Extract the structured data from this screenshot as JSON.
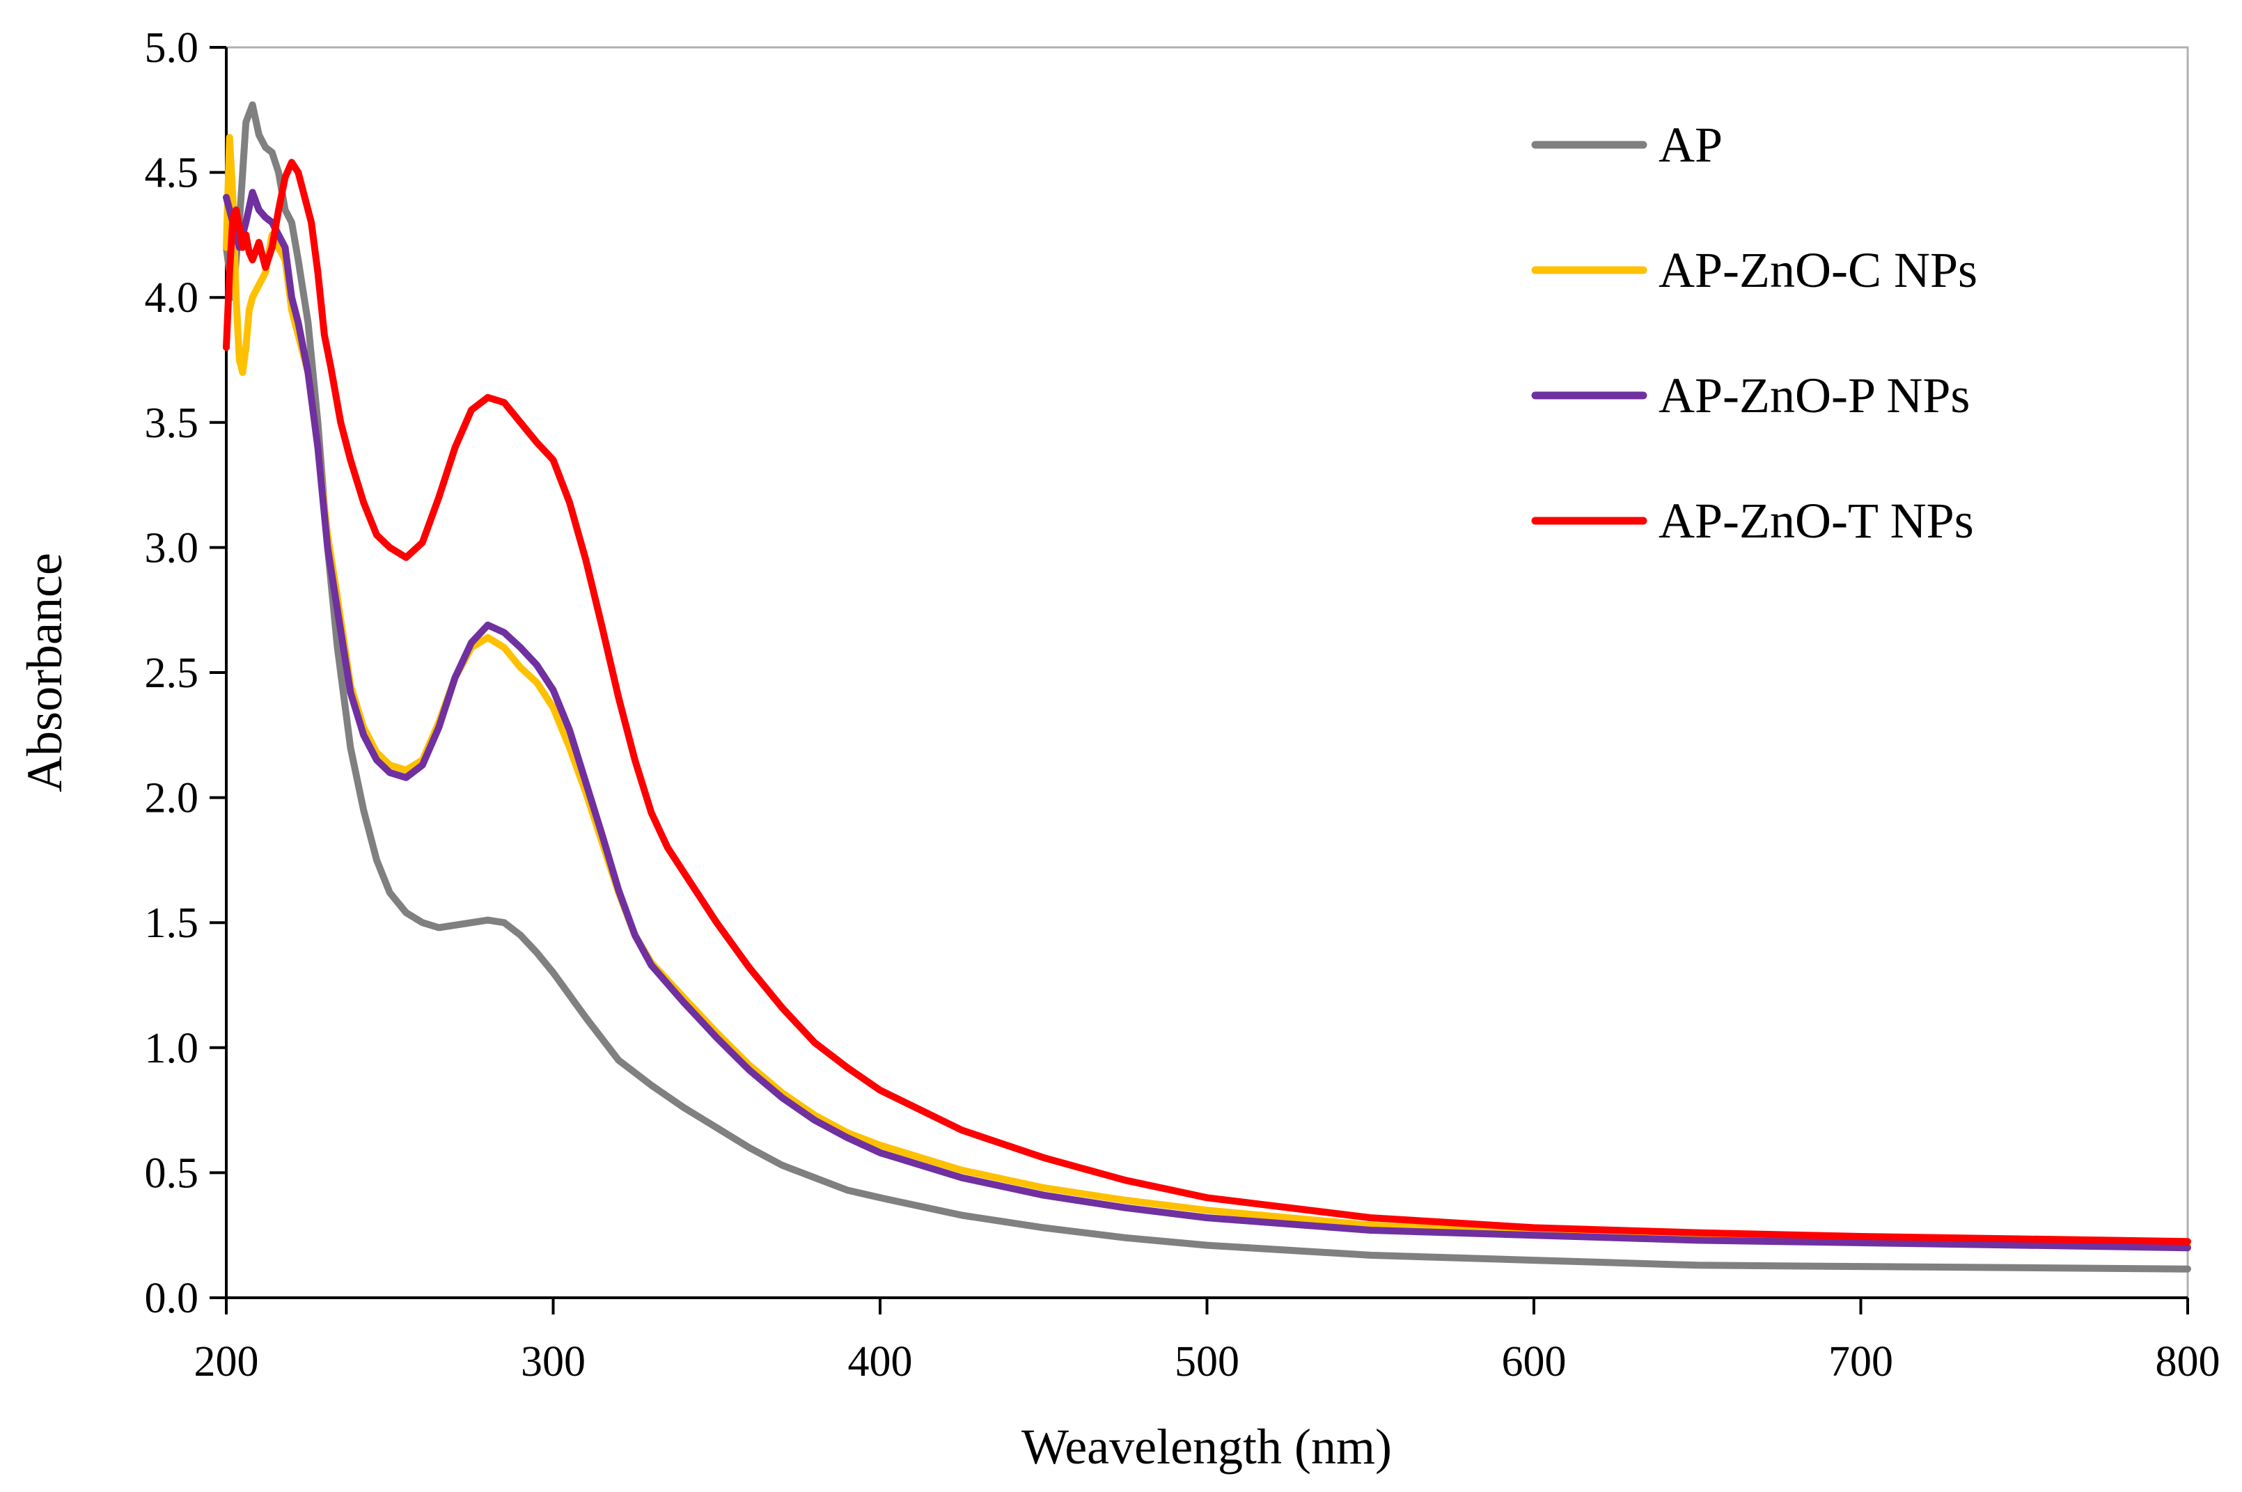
{
  "chart_data": {
    "type": "line",
    "title": "",
    "xlabel": "Weavelength (nm)",
    "ylabel": "Absorbance",
    "xlim": [
      200,
      800
    ],
    "ylim": [
      0,
      5
    ],
    "xticks": [
      200,
      300,
      400,
      500,
      600,
      700,
      800
    ],
    "yticks": [
      0.0,
      0.5,
      1.0,
      1.5,
      2.0,
      2.5,
      3.0,
      3.5,
      4.0,
      4.5,
      5.0
    ],
    "xtick_labels": [
      "200",
      "300",
      "400",
      "500",
      "600",
      "700",
      "800"
    ],
    "ytick_labels": [
      "0.0",
      "0.5",
      "1.0",
      "1.5",
      "2.0",
      "2.5",
      "3.0",
      "3.5",
      "4.0",
      "4.5",
      "5.0"
    ],
    "grid": false,
    "legend_position": "top-right",
    "series": [
      {
        "name": "AP",
        "color": "#808080",
        "points": [
          [
            200,
            4.2
          ],
          [
            202,
            4.0
          ],
          [
            204,
            4.3
          ],
          [
            206,
            4.7
          ],
          [
            208,
            4.77
          ],
          [
            210,
            4.65
          ],
          [
            212,
            4.6
          ],
          [
            214,
            4.58
          ],
          [
            216,
            4.5
          ],
          [
            218,
            4.35
          ],
          [
            220,
            4.3
          ],
          [
            222,
            4.15
          ],
          [
            225,
            3.9
          ],
          [
            228,
            3.5
          ],
          [
            231,
            3.0
          ],
          [
            234,
            2.6
          ],
          [
            238,
            2.2
          ],
          [
            242,
            1.95
          ],
          [
            246,
            1.75
          ],
          [
            250,
            1.62
          ],
          [
            255,
            1.54
          ],
          [
            260,
            1.5
          ],
          [
            265,
            1.48
          ],
          [
            270,
            1.49
          ],
          [
            275,
            1.5
          ],
          [
            280,
            1.51
          ],
          [
            285,
            1.5
          ],
          [
            290,
            1.45
          ],
          [
            295,
            1.38
          ],
          [
            300,
            1.3
          ],
          [
            310,
            1.12
          ],
          [
            320,
            0.95
          ],
          [
            330,
            0.85
          ],
          [
            340,
            0.76
          ],
          [
            350,
            0.68
          ],
          [
            360,
            0.6
          ],
          [
            370,
            0.53
          ],
          [
            380,
            0.48
          ],
          [
            390,
            0.43
          ],
          [
            400,
            0.4
          ],
          [
            425,
            0.33
          ],
          [
            450,
            0.28
          ],
          [
            475,
            0.24
          ],
          [
            500,
            0.21
          ],
          [
            550,
            0.17
          ],
          [
            600,
            0.15
          ],
          [
            650,
            0.13
          ],
          [
            700,
            0.125
          ],
          [
            750,
            0.12
          ],
          [
            800,
            0.115
          ]
        ]
      },
      {
        "name": "AP-ZnO-C NPs",
        "color": "#FFC000",
        "points": [
          [
            200,
            4.2
          ],
          [
            201,
            4.64
          ],
          [
            202,
            4.4
          ],
          [
            203,
            4.0
          ],
          [
            204,
            3.75
          ],
          [
            205,
            3.7
          ],
          [
            206,
            3.8
          ],
          [
            207,
            3.95
          ],
          [
            208,
            4.0
          ],
          [
            210,
            4.05
          ],
          [
            212,
            4.1
          ],
          [
            214,
            4.25
          ],
          [
            216,
            4.2
          ],
          [
            218,
            4.15
          ],
          [
            220,
            3.95
          ],
          [
            222,
            3.85
          ],
          [
            225,
            3.7
          ],
          [
            228,
            3.4
          ],
          [
            231,
            3.05
          ],
          [
            234,
            2.8
          ],
          [
            238,
            2.45
          ],
          [
            242,
            2.28
          ],
          [
            246,
            2.18
          ],
          [
            250,
            2.13
          ],
          [
            255,
            2.11
          ],
          [
            260,
            2.15
          ],
          [
            265,
            2.3
          ],
          [
            270,
            2.48
          ],
          [
            275,
            2.6
          ],
          [
            280,
            2.64
          ],
          [
            285,
            2.6
          ],
          [
            290,
            2.52
          ],
          [
            295,
            2.46
          ],
          [
            300,
            2.36
          ],
          [
            305,
            2.2
          ],
          [
            310,
            2.02
          ],
          [
            315,
            1.82
          ],
          [
            320,
            1.62
          ],
          [
            325,
            1.45
          ],
          [
            330,
            1.34
          ],
          [
            340,
            1.2
          ],
          [
            350,
            1.06
          ],
          [
            360,
            0.93
          ],
          [
            370,
            0.82
          ],
          [
            380,
            0.73
          ],
          [
            390,
            0.66
          ],
          [
            400,
            0.61
          ],
          [
            425,
            0.51
          ],
          [
            450,
            0.44
          ],
          [
            475,
            0.39
          ],
          [
            500,
            0.35
          ],
          [
            550,
            0.29
          ],
          [
            600,
            0.26
          ],
          [
            650,
            0.24
          ],
          [
            700,
            0.23
          ],
          [
            750,
            0.22
          ],
          [
            800,
            0.21
          ]
        ]
      },
      {
        "name": "AP-ZnO-P NPs",
        "color": "#7030A0",
        "points": [
          [
            200,
            4.4
          ],
          [
            202,
            4.3
          ],
          [
            204,
            4.2
          ],
          [
            206,
            4.3
          ],
          [
            208,
            4.42
          ],
          [
            210,
            4.35
          ],
          [
            212,
            4.32
          ],
          [
            214,
            4.3
          ],
          [
            216,
            4.25
          ],
          [
            218,
            4.2
          ],
          [
            220,
            4.0
          ],
          [
            222,
            3.9
          ],
          [
            225,
            3.7
          ],
          [
            228,
            3.4
          ],
          [
            231,
            3.0
          ],
          [
            234,
            2.75
          ],
          [
            238,
            2.42
          ],
          [
            242,
            2.25
          ],
          [
            246,
            2.15
          ],
          [
            250,
            2.1
          ],
          [
            255,
            2.08
          ],
          [
            260,
            2.13
          ],
          [
            265,
            2.28
          ],
          [
            270,
            2.48
          ],
          [
            275,
            2.62
          ],
          [
            280,
            2.69
          ],
          [
            285,
            2.66
          ],
          [
            290,
            2.6
          ],
          [
            295,
            2.53
          ],
          [
            300,
            2.43
          ],
          [
            305,
            2.27
          ],
          [
            310,
            2.06
          ],
          [
            315,
            1.85
          ],
          [
            320,
            1.63
          ],
          [
            325,
            1.45
          ],
          [
            330,
            1.33
          ],
          [
            340,
            1.18
          ],
          [
            350,
            1.04
          ],
          [
            360,
            0.91
          ],
          [
            370,
            0.8
          ],
          [
            380,
            0.71
          ],
          [
            390,
            0.64
          ],
          [
            400,
            0.58
          ],
          [
            425,
            0.48
          ],
          [
            450,
            0.41
          ],
          [
            475,
            0.36
          ],
          [
            500,
            0.32
          ],
          [
            550,
            0.27
          ],
          [
            600,
            0.25
          ],
          [
            650,
            0.23
          ],
          [
            700,
            0.22
          ],
          [
            750,
            0.21
          ],
          [
            800,
            0.2
          ]
        ]
      },
      {
        "name": "AP-ZnO-T NPs",
        "color": "#FF0000",
        "points": [
          [
            200,
            3.8
          ],
          [
            201,
            4.1
          ],
          [
            202,
            4.32
          ],
          [
            203,
            4.35
          ],
          [
            204,
            4.28
          ],
          [
            205,
            4.2
          ],
          [
            206,
            4.25
          ],
          [
            207,
            4.18
          ],
          [
            208,
            4.15
          ],
          [
            210,
            4.22
          ],
          [
            212,
            4.12
          ],
          [
            214,
            4.2
          ],
          [
            216,
            4.35
          ],
          [
            218,
            4.48
          ],
          [
            220,
            4.54
          ],
          [
            222,
            4.5
          ],
          [
            224,
            4.4
          ],
          [
            226,
            4.3
          ],
          [
            228,
            4.1
          ],
          [
            230,
            3.85
          ],
          [
            232,
            3.72
          ],
          [
            235,
            3.5
          ],
          [
            238,
            3.35
          ],
          [
            242,
            3.18
          ],
          [
            246,
            3.05
          ],
          [
            250,
            3.0
          ],
          [
            255,
            2.96
          ],
          [
            260,
            3.02
          ],
          [
            265,
            3.2
          ],
          [
            270,
            3.4
          ],
          [
            275,
            3.55
          ],
          [
            280,
            3.6
          ],
          [
            285,
            3.58
          ],
          [
            290,
            3.5
          ],
          [
            295,
            3.42
          ],
          [
            300,
            3.35
          ],
          [
            305,
            3.18
          ],
          [
            310,
            2.95
          ],
          [
            315,
            2.68
          ],
          [
            320,
            2.4
          ],
          [
            325,
            2.15
          ],
          [
            330,
            1.94
          ],
          [
            335,
            1.8
          ],
          [
            340,
            1.7
          ],
          [
            345,
            1.6
          ],
          [
            350,
            1.5
          ],
          [
            360,
            1.32
          ],
          [
            370,
            1.16
          ],
          [
            380,
            1.02
          ],
          [
            390,
            0.92
          ],
          [
            400,
            0.83
          ],
          [
            425,
            0.67
          ],
          [
            450,
            0.56
          ],
          [
            475,
            0.47
          ],
          [
            500,
            0.4
          ],
          [
            550,
            0.32
          ],
          [
            600,
            0.28
          ],
          [
            650,
            0.26
          ],
          [
            700,
            0.245
          ],
          [
            750,
            0.235
          ],
          [
            800,
            0.225
          ]
        ]
      }
    ]
  }
}
